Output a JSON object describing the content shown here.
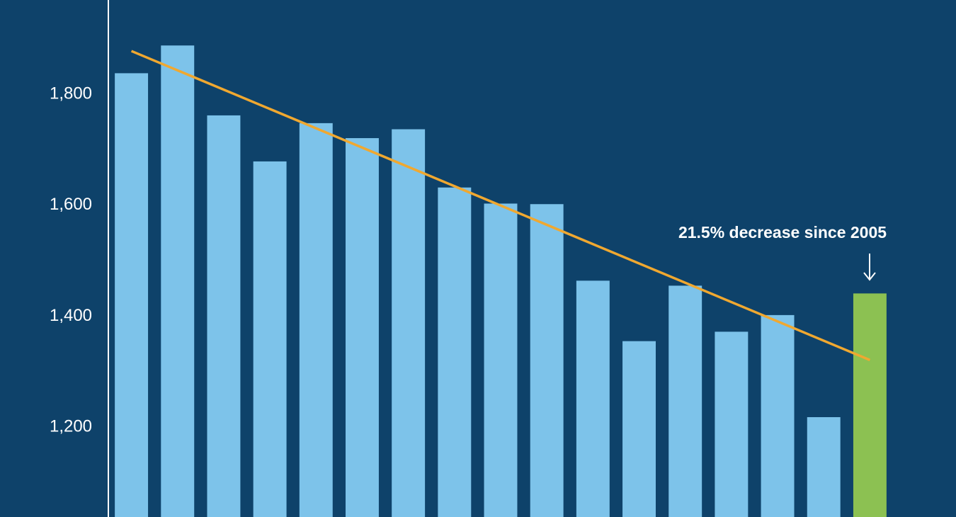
{
  "chart_data": {
    "type": "bar",
    "categories": [
      null,
      null,
      null,
      null,
      null,
      null,
      null,
      null,
      null,
      null,
      null,
      null,
      null,
      null,
      null,
      null,
      null
    ],
    "values": [
      1838,
      1888,
      1762,
      1679,
      1748,
      1721,
      1737,
      1632,
      1603,
      1602,
      1464,
      1355,
      1455,
      1372,
      1402,
      1218,
      1441
    ],
    "colors": [
      "#7dc3ea",
      "#7dc3ea",
      "#7dc3ea",
      "#7dc3ea",
      "#7dc3ea",
      "#7dc3ea",
      "#7dc3ea",
      "#7dc3ea",
      "#7dc3ea",
      "#7dc3ea",
      "#7dc3ea",
      "#7dc3ea",
      "#7dc3ea",
      "#7dc3ea",
      "#7dc3ea",
      "#7dc3ea",
      "#8cc152"
    ],
    "trend": {
      "color": "#f0a830",
      "values": [
        1878,
        1321
      ]
    },
    "annotation": "21.5% decrease since 2005",
    "ylim": [
      1038,
      1970
    ],
    "yticks": [
      {
        "value": 1200,
        "label": "1,200"
      },
      {
        "value": 1400,
        "label": "1,400"
      },
      {
        "value": 1600,
        "label": "1,600"
      },
      {
        "value": 1800,
        "label": "1,800"
      }
    ],
    "grid": false
  }
}
